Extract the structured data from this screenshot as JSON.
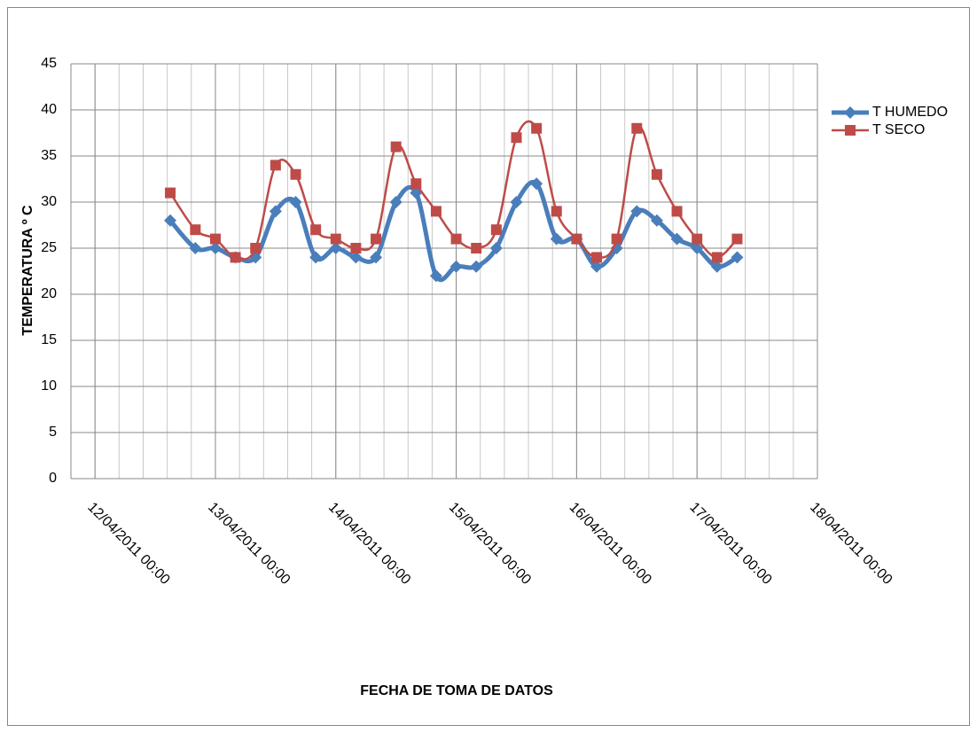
{
  "chart_data": {
    "type": "line",
    "y_label": "TEMPERATURA º C",
    "x_label": "FECHA DE TOMA DE DATOS",
    "x": [
      "2011-04-12T15:00",
      "2011-04-12T20:00",
      "2011-04-13T00:00",
      "2011-04-13T04:00",
      "2011-04-13T08:00",
      "2011-04-13T12:00",
      "2011-04-13T16:00",
      "2011-04-13T20:00",
      "2011-04-14T00:00",
      "2011-04-14T04:00",
      "2011-04-14T08:00",
      "2011-04-14T12:00",
      "2011-04-14T16:00",
      "2011-04-14T20:00",
      "2011-04-15T00:00",
      "2011-04-15T04:00",
      "2011-04-15T08:00",
      "2011-04-15T12:00",
      "2011-04-15T16:00",
      "2011-04-15T20:00",
      "2011-04-16T00:00",
      "2011-04-16T04:00",
      "2011-04-16T08:00",
      "2011-04-16T12:00",
      "2011-04-16T16:00",
      "2011-04-16T20:00",
      "2011-04-17T00:00",
      "2011-04-17T04:00",
      "2011-04-17T08:00"
    ],
    "series": [
      {
        "name": "T HUMEDO",
        "color": "#4a7ebb",
        "marker": "diamond",
        "values": [
          28,
          25,
          25,
          24,
          24,
          29,
          30,
          24,
          25,
          24,
          24,
          30,
          31,
          22,
          23,
          23,
          25,
          30,
          32,
          26,
          26,
          23,
          25,
          29,
          28,
          26,
          25,
          23,
          24
        ]
      },
      {
        "name": "T SECO",
        "color": "#be4b48",
        "marker": "square",
        "values": [
          31,
          27,
          26,
          24,
          25,
          34,
          33,
          27,
          26,
          25,
          26,
          36,
          32,
          29,
          26,
          25,
          27,
          37,
          38,
          29,
          26,
          24,
          26,
          38,
          33,
          29,
          26,
          24,
          26
        ]
      }
    ],
    "xlim": [
      "2011-04-11T19:12",
      "2011-04-18T00:00"
    ],
    "xticks": [
      {
        "value": "2011-04-12T00:00",
        "label": "12/04/2011 00:00"
      },
      {
        "value": "2011-04-13T00:00",
        "label": "13/04/2011 00:00"
      },
      {
        "value": "2011-04-14T00:00",
        "label": "14/04/2011 00:00"
      },
      {
        "value": "2011-04-15T00:00",
        "label": "15/04/2011 00:00"
      },
      {
        "value": "2011-04-16T00:00",
        "label": "16/04/2011 00:00"
      },
      {
        "value": "2011-04-17T00:00",
        "label": "17/04/2011 00:00"
      },
      {
        "value": "2011-04-18T00:00",
        "label": "18/04/2011 00:00"
      }
    ],
    "ylim": [
      0,
      45
    ],
    "yticks": [
      0,
      5,
      10,
      15,
      20,
      25,
      30,
      35,
      40,
      45
    ],
    "grid": true,
    "smooth": true,
    "legend": "right"
  }
}
